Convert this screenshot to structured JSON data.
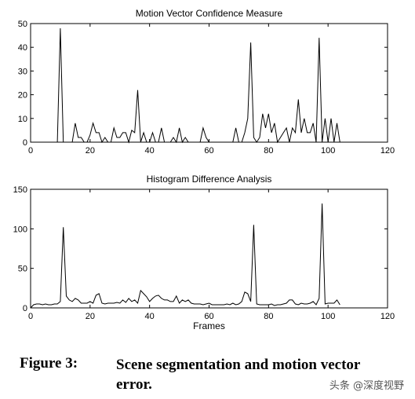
{
  "chart_data": [
    {
      "type": "line",
      "title": "Motion Vector Confidence Measure",
      "xlabel": "",
      "ylabel": "",
      "xlim": [
        0,
        120
      ],
      "ylim": [
        0,
        50
      ],
      "xticks": [
        0,
        20,
        40,
        60,
        80,
        100,
        120
      ],
      "yticks": [
        0,
        10,
        20,
        30,
        40,
        50
      ],
      "grid": false,
      "series": [
        {
          "color": "#000000",
          "x": [
            9,
            10,
            11,
            12,
            13,
            14,
            15,
            16,
            17,
            18,
            19,
            20,
            21,
            22,
            23,
            24,
            25,
            26,
            27,
            28,
            29,
            30,
            31,
            32,
            33,
            34,
            35,
            36,
            37,
            38,
            39,
            40,
            41,
            42,
            43,
            44,
            45,
            46,
            47,
            48,
            49,
            50,
            51,
            52,
            53,
            54,
            55,
            56,
            57,
            58,
            59,
            60,
            61,
            62,
            63,
            64,
            65,
            66,
            67,
            68,
            69,
            70,
            71,
            72,
            73,
            74,
            75,
            76,
            77,
            78,
            79,
            80,
            81,
            82,
            83,
            84,
            85,
            86,
            87,
            88,
            89,
            90,
            91,
            92,
            93,
            94,
            95,
            96,
            97,
            98,
            99,
            100,
            101,
            102,
            103,
            104
          ],
          "y": [
            0,
            48,
            0,
            0,
            0,
            0,
            8,
            2,
            2,
            0,
            0,
            3,
            8,
            4,
            4,
            0,
            2,
            0,
            0,
            6,
            2,
            2,
            4,
            4,
            0,
            5,
            4,
            22,
            0,
            4,
            0,
            0,
            4,
            0,
            0,
            6,
            0,
            0,
            0,
            2,
            0,
            6,
            0,
            2,
            0,
            0,
            0,
            0,
            0,
            6,
            2,
            0,
            0,
            0,
            0,
            0,
            0,
            0,
            0,
            0,
            6,
            0,
            0,
            4,
            10,
            42,
            2,
            0,
            2,
            12,
            6,
            12,
            4,
            8,
            0,
            2,
            4,
            6,
            0,
            6,
            4,
            18,
            4,
            10,
            4,
            4,
            8,
            0,
            44,
            0,
            10,
            0,
            10,
            0,
            8,
            0
          ]
        }
      ]
    },
    {
      "type": "line",
      "title": "Histogram Difference Analysis",
      "xlabel": "Frames",
      "ylabel": "",
      "xlim": [
        0,
        120
      ],
      "ylim": [
        0,
        150
      ],
      "xticks": [
        0,
        20,
        40,
        60,
        80,
        100,
        120
      ],
      "yticks": [
        0,
        50,
        100,
        150
      ],
      "grid": false,
      "series": [
        {
          "color": "#000000",
          "x": [
            0,
            1,
            2,
            3,
            4,
            5,
            6,
            7,
            8,
            9,
            10,
            11,
            12,
            13,
            14,
            15,
            16,
            17,
            18,
            19,
            20,
            21,
            22,
            23,
            24,
            25,
            26,
            27,
            28,
            29,
            30,
            31,
            32,
            33,
            34,
            35,
            36,
            37,
            38,
            39,
            40,
            41,
            42,
            43,
            44,
            45,
            46,
            47,
            48,
            49,
            50,
            51,
            52,
            53,
            54,
            55,
            56,
            57,
            58,
            59,
            60,
            61,
            62,
            63,
            64,
            65,
            66,
            67,
            68,
            69,
            70,
            71,
            72,
            73,
            74,
            75,
            76,
            77,
            78,
            79,
            80,
            81,
            82,
            83,
            84,
            85,
            86,
            87,
            88,
            89,
            90,
            91,
            92,
            93,
            94,
            95,
            96,
            97,
            98,
            99,
            100,
            101,
            102,
            103,
            104
          ],
          "y": [
            0,
            4,
            5,
            5,
            4,
            5,
            4,
            4,
            5,
            5,
            8,
            102,
            15,
            10,
            8,
            12,
            10,
            6,
            6,
            6,
            8,
            6,
            16,
            18,
            6,
            5,
            6,
            6,
            6,
            7,
            6,
            10,
            7,
            12,
            8,
            10,
            6,
            22,
            18,
            14,
            8,
            12,
            15,
            16,
            12,
            10,
            10,
            8,
            8,
            15,
            6,
            10,
            8,
            10,
            6,
            5,
            5,
            5,
            4,
            5,
            6,
            4,
            4,
            4,
            4,
            4,
            5,
            4,
            6,
            4,
            5,
            8,
            20,
            18,
            8,
            105,
            5,
            4,
            4,
            4,
            4,
            5,
            3,
            4,
            4,
            5,
            6,
            10,
            10,
            5,
            4,
            6,
            5,
            5,
            6,
            8,
            4,
            12,
            132,
            5,
            6,
            6,
            6,
            10,
            4
          ]
        }
      ]
    }
  ],
  "caption": {
    "label": "Figure 3:",
    "text": "Scene segmentation and motion vector error."
  },
  "watermark": "头条 @深度视野"
}
